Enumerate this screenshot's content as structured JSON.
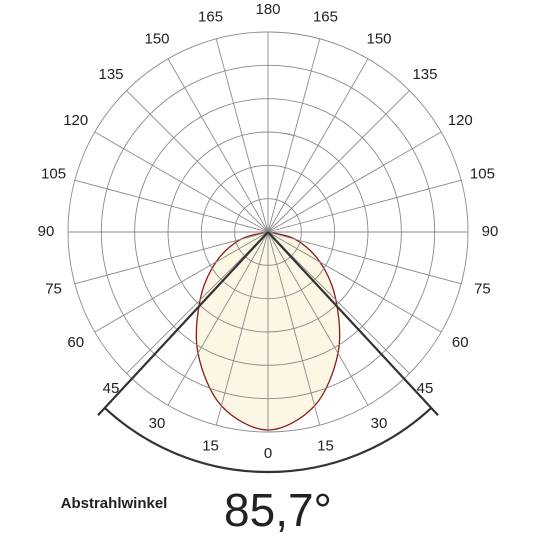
{
  "chart_data": {
    "type": "polar",
    "angle_ticks": [
      0,
      15,
      30,
      45,
      60,
      75,
      90,
      105,
      120,
      135,
      150,
      165,
      180
    ],
    "rlim": [
      0,
      6
    ],
    "rticks": [
      1,
      2,
      3,
      4,
      5,
      6
    ],
    "series": [
      {
        "color": "#8b1a1a",
        "fill": "#fbf6e1",
        "angles": [
          -90,
          -75,
          -60,
          -45,
          -30,
          -15,
          0,
          15,
          30,
          45,
          60,
          75,
          90
        ],
        "values": [
          0,
          0.84,
          1.8,
          2.88,
          4.2,
          5.4,
          5.94,
          5.4,
          4.2,
          2.88,
          1.8,
          0.84,
          0
        ]
      }
    ],
    "beam_angle": {
      "value": 85.7,
      "label": "85,7°"
    },
    "caption": "Abstrahlwinkel"
  }
}
